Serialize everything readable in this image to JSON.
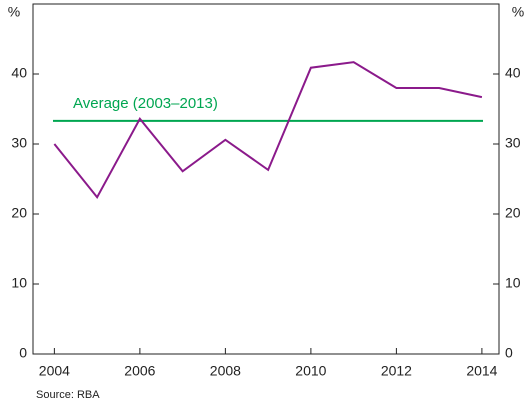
{
  "chart_data": {
    "type": "line",
    "x": [
      2004,
      2005,
      2006,
      2007,
      2008,
      2009,
      2010,
      2011,
      2012,
      2013,
      2014
    ],
    "series": [
      {
        "color": "#8b1a8b",
        "values": [
          30,
          22.4,
          33.6,
          26.1,
          30.6,
          26.3,
          40.9,
          41.7,
          38,
          38,
          36.7
        ]
      }
    ],
    "reference_lines": [
      {
        "label": "Average (2003–2013)",
        "value": 33.3,
        "color": "#00a651"
      }
    ],
    "xlim": [
      2003.5,
      2014.4
    ],
    "xticks": [
      2004,
      2006,
      2008,
      2010,
      2012,
      2014
    ],
    "ylim": [
      0,
      50
    ],
    "yticks": [
      0,
      10,
      20,
      30,
      40
    ],
    "y2lim": [
      0,
      50
    ],
    "y2ticks": [
      0,
      10,
      20,
      30,
      40
    ],
    "y_unit": "%",
    "y2_unit": "%",
    "source": "Source: RBA"
  }
}
